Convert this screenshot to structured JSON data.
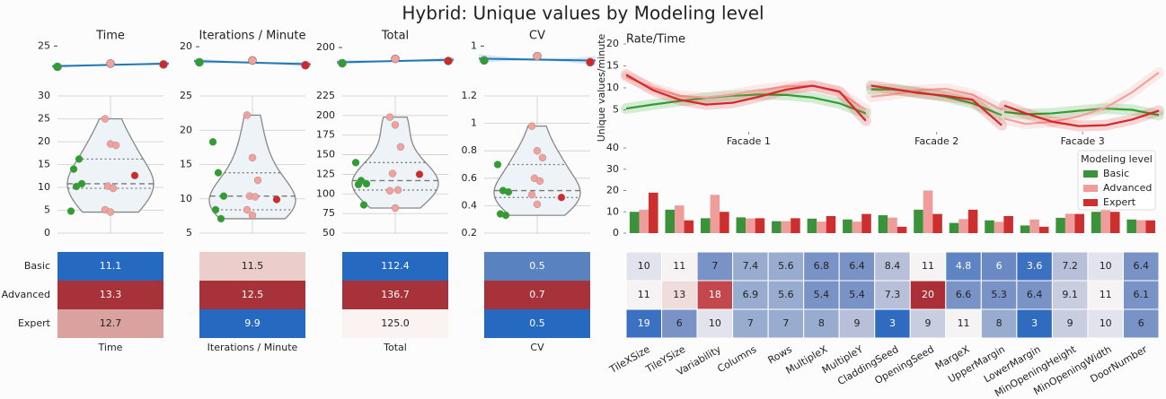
{
  "title": "Hybrid: Unique values by Modeling level",
  "chart_data": [
    {
      "type": "scatter_fit",
      "title": "Time",
      "x": [
        0,
        1,
        2
      ],
      "values": [
        11.1,
        13.3,
        12.7
      ],
      "colors": [
        "#2ca02c",
        "#f4a09c",
        "#d62728"
      ],
      "line_color": "#1f77b4",
      "ylim": [
        0,
        27
      ],
      "yticks": [
        25
      ]
    },
    {
      "type": "scatter_fit",
      "title": "Iterations / Minute",
      "x": [
        0,
        1,
        2
      ],
      "values": [
        11.5,
        12.5,
        9.9
      ],
      "colors": [
        "#2ca02c",
        "#f4a09c",
        "#d62728"
      ],
      "line_color": "#1f77b4",
      "ylim": [
        0,
        22
      ],
      "yticks": [
        20
      ]
    },
    {
      "type": "scatter_fit",
      "title": "Total",
      "x": [
        0,
        1,
        2
      ],
      "values": [
        112.4,
        136.7,
        125
      ],
      "colors": [
        "#2ca02c",
        "#f4a09c",
        "#d62728"
      ],
      "line_color": "#1f77b4",
      "ylim": [
        0,
        225
      ],
      "yticks": [
        200
      ]
    },
    {
      "type": "scatter_fit",
      "title": "CV",
      "x": [
        0,
        1,
        2
      ],
      "values": [
        0.52,
        0.66,
        0.46
      ],
      "colors": [
        "#2ca02c",
        "#f4a09c",
        "#d62728"
      ],
      "line_color": "#1f77b4",
      "ylim": [
        -0.25,
        1.1
      ],
      "yticks": [
        1
      ]
    },
    {
      "type": "violin",
      "ylim": [
        0,
        30
      ],
      "yticks": [
        0,
        5,
        10,
        15,
        20,
        25,
        30
      ],
      "grid": true,
      "series": [
        {
          "color": "#2ca02c",
          "values": [
            4.8,
            10.2,
            10.8,
            14,
            16.2
          ]
        },
        {
          "color": "#f4a09c",
          "values": [
            25,
            19.5,
            19.2,
            10.3,
            9.8,
            5.1,
            4.6
          ]
        },
        {
          "color": "#d62728",
          "values": [
            12.6
          ]
        }
      ]
    },
    {
      "type": "violin",
      "ylim": [
        5,
        25
      ],
      "yticks": [
        5,
        10,
        15,
        20,
        25
      ],
      "grid": true,
      "series": [
        {
          "color": "#2ca02c",
          "values": [
            18.3,
            13.8,
            10.4,
            8.4,
            7.1
          ]
        },
        {
          "color": "#f4a09c",
          "values": [
            22.2,
            16,
            12.7,
            10.4,
            10.3,
            8.4,
            7.6
          ]
        },
        {
          "color": "#d62728",
          "values": [
            9.9
          ]
        }
      ]
    },
    {
      "type": "violin",
      "ylim": [
        50,
        225
      ],
      "yticks": [
        50,
        75,
        100,
        125,
        150,
        175,
        200,
        225
      ],
      "grid": true,
      "series": [
        {
          "color": "#2ca02c",
          "values": [
            140,
            117,
            113,
            112,
            86
          ]
        },
        {
          "color": "#f4a09c",
          "values": [
            198,
            188,
            160,
            126,
            105,
            104,
            82
          ]
        },
        {
          "color": "#d62728",
          "values": [
            125
          ]
        }
      ]
    },
    {
      "type": "violin",
      "ylim": [
        0.2,
        1.2
      ],
      "yticks": [
        0.2,
        0.4,
        0.6,
        0.8,
        1.0,
        1.2
      ],
      "grid": true,
      "series": [
        {
          "color": "#2ca02c",
          "values": [
            0.7,
            0.51,
            0.5,
            0.34,
            0.33
          ]
        },
        {
          "color": "#f4a09c",
          "values": [
            0.98,
            0.8,
            0.75,
            0.6,
            0.58,
            0.48,
            0.41
          ]
        },
        {
          "color": "#d62728",
          "values": [
            0.46
          ]
        }
      ]
    },
    {
      "type": "heatmap",
      "rows": [
        "Basic",
        "Advanced",
        "Expert"
      ],
      "xlabel": "Time",
      "values": [
        [
          11.1
        ],
        [
          13.3
        ],
        [
          12.7
        ]
      ],
      "colors": [
        [
          "#2569c0"
        ],
        [
          "#a8323a"
        ],
        [
          "#d9a29f"
        ]
      ]
    },
    {
      "type": "heatmap",
      "xlabel": "Iterations / Minute",
      "values": [
        [
          11.5
        ],
        [
          12.5
        ],
        [
          9.9
        ]
      ],
      "colors": [
        [
          "#ebcdcb"
        ],
        [
          "#a8323a"
        ],
        [
          "#2569c0"
        ]
      ]
    },
    {
      "type": "heatmap",
      "xlabel": "Total",
      "values": [
        [
          112.4
        ],
        [
          136.7
        ],
        [
          125
        ]
      ],
      "value_labels": [
        [
          "112.4"
        ],
        [
          "136.7"
        ],
        [
          "125.0"
        ]
      ],
      "colors": [
        [
          "#2569c0"
        ],
        [
          "#a8323a"
        ],
        [
          "#fbf2f2"
        ]
      ]
    },
    {
      "type": "heatmap",
      "xlabel": "CV",
      "values": [
        [
          0.5
        ],
        [
          0.7
        ],
        [
          0.5
        ]
      ],
      "colors": [
        [
          "#5882c0"
        ],
        [
          "#a8323a"
        ],
        [
          "#2569c0"
        ]
      ]
    },
    {
      "type": "line",
      "title": "Rate/Time",
      "ylabel": "Unique values/minute",
      "ylim": [
        0,
        20
      ],
      "yticks": [
        5,
        10,
        15,
        20
      ],
      "xlim": [
        0,
        10
      ],
      "xticks": [
        {
          "value": 2.3,
          "label": "Facade 1"
        },
        {
          "value": 5.83,
          "label": "Facade 2"
        },
        {
          "value": 8.57,
          "label": "Facade 3"
        }
      ],
      "x": [
        0,
        0.5,
        1,
        1.5,
        2,
        2.5,
        3,
        3.5,
        4,
        4.5,
        4.55,
        4.6,
        5,
        5.5,
        6,
        6.5,
        7.05,
        7.08,
        7.1,
        7.5,
        8,
        8.5,
        9,
        9.5,
        10
      ],
      "series": [
        {
          "color": "#2ca02c",
          "values": [
            5.3,
            6.2,
            7,
            7.7,
            8.2,
            8.5,
            8.4,
            7.8,
            6.5,
            4.2,
            null,
            9.7,
            9.6,
            9.0,
            8.0,
            6.5,
            3.8,
            null,
            4.5,
            4.0,
            4.2,
            4.8,
            5.3,
            5.0,
            3.8
          ]
        },
        {
          "color": "#f4a09c",
          "values": [
            12.5,
            10,
            8.2,
            7.8,
            8.5,
            9.5,
            10.3,
            10.5,
            9,
            5,
            null,
            8,
            8.5,
            9.5,
            9.8,
            8.5,
            5,
            null,
            3,
            1.8,
            2.3,
            3.5,
            5.5,
            9,
            13.5
          ]
        },
        {
          "color": "#d62728",
          "values": [
            13,
            9.5,
            7.3,
            6.2,
            6.6,
            8,
            9.6,
            10.5,
            9.2,
            2.5,
            null,
            10.5,
            9.8,
            8.8,
            8.2,
            7.3,
            1.5,
            null,
            6,
            4.2,
            2.3,
            1.3,
            1.5,
            2.8,
            4.8
          ]
        }
      ]
    },
    {
      "type": "bar",
      "ylim": [
        0,
        40
      ],
      "yticks": [
        0,
        10,
        20,
        30,
        40
      ],
      "legend_title": "Modeling level",
      "legend": "upper right",
      "series": [
        {
          "name": "Basic",
          "color": "#3a923a",
          "values": [
            10,
            11,
            7,
            7.4,
            5.6,
            6.8,
            6.4,
            8.4,
            11,
            4.8,
            6,
            3.6,
            7.2,
            10,
            6.4
          ]
        },
        {
          "name": "Advanced",
          "color": "#ee9d9b",
          "values": [
            11,
            13,
            18,
            6.9,
            5.6,
            5.4,
            5.4,
            7.3,
            20,
            6.6,
            5.3,
            6.4,
            9.1,
            11,
            6.1
          ]
        },
        {
          "name": "Expert",
          "color": "#cd2f2f",
          "values": [
            19,
            6,
            10,
            7,
            7,
            8,
            9,
            3,
            9,
            11,
            8,
            3,
            9,
            10,
            6
          ]
        }
      ]
    },
    {
      "type": "heatmap",
      "categories": [
        "TileXSize",
        "TileYSize",
        "Variability",
        "Columns",
        "Rows",
        "MultipleX",
        "MultipleY",
        "CladdingSeed",
        "OpeningSeed",
        "MargeX",
        "UpperMargin",
        "LowerMargin",
        "MinOpeningHeight",
        "MinOpeningWidth",
        "DoorNumber"
      ],
      "values": [
        [
          10,
          11,
          7,
          7.4,
          5.6,
          6.8,
          6.4,
          8.4,
          11,
          4.8,
          6,
          3.6,
          7.2,
          10,
          6.4
        ],
        [
          11,
          13,
          18,
          6.9,
          5.6,
          5.4,
          5.4,
          7.3,
          20,
          6.6,
          5.3,
          6.4,
          9.1,
          11,
          6.1
        ],
        [
          19,
          6,
          10,
          7,
          7,
          8,
          9,
          3,
          9,
          11,
          8,
          3,
          9,
          10,
          6
        ]
      ],
      "colors": [
        [
          "#e2e3ec",
          "#f5f3f3",
          "#7a93c6",
          "#98acd0",
          "#98acd0",
          "#7a93c6",
          "#7a93c6",
          "#b7c0d8",
          "#f5f3f3",
          "#5f84c3",
          "#6b8ac4",
          "#3c70c0",
          "#b7c0d8",
          "#e2e3ec",
          "#7a93c6"
        ],
        [
          "#f5f3f3",
          "#f1dcdc",
          "#c2484d",
          "#98acd0",
          "#98acd0",
          "#7a93c6",
          "#7a93c6",
          "#b7c0d8",
          "#ab2f37",
          "#7a93c6",
          "#7a93c6",
          "#7a93c6",
          "#c8cee0",
          "#f5f3f3",
          "#7a93c6"
        ],
        [
          "#3c70c0",
          "#7a93c6",
          "#e2e3ec",
          "#98acd0",
          "#98acd0",
          "#98acd0",
          "#b7c0d8",
          "#2f6bbf",
          "#c8cee0",
          "#f5f3f3",
          "#98acd0",
          "#2f6bbf",
          "#c8cee0",
          "#e2e3ec",
          "#7a93c6"
        ]
      ]
    }
  ]
}
